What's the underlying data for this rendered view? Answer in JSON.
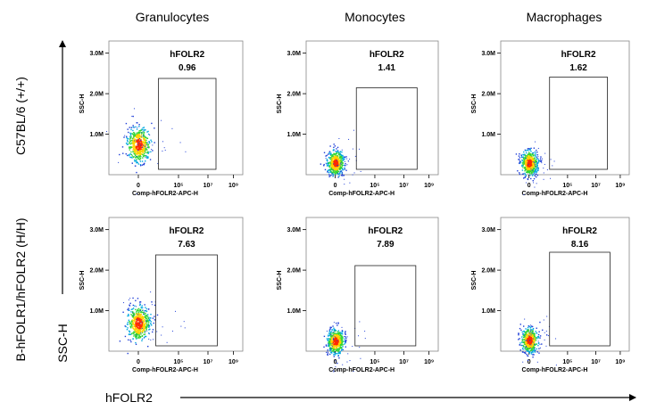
{
  "figure": {
    "columns": [
      "Granulocytes",
      "Monocytes",
      "Macrophages"
    ],
    "rows": [
      "C57BL/6 (+/+)",
      "B-hFOLR1/hFOLR2 (H/H)"
    ],
    "side_axis_label": "SSC-H",
    "bottom_axis_label": "hFOLR2"
  },
  "chart_data": [
    {
      "type": "scatter",
      "row": "C57BL/6 (+/+)",
      "column": "Granulocytes",
      "gate_name": "hFOLR2",
      "gate_percent": "0.96",
      "xlabel": "Comp-hFOLR2-APC-H",
      "ylabel": "SSC-H",
      "x_ticks": [
        "0",
        "10⁵",
        "10⁷",
        "10⁹"
      ],
      "y_ticks": [
        "1.0M",
        "2.0M",
        "3.0M"
      ],
      "population_center": {
        "x": 0,
        "y": 750000
      }
    },
    {
      "type": "scatter",
      "row": "C57BL/6 (+/+)",
      "column": "Monocytes",
      "gate_name": "hFOLR2",
      "gate_percent": "1.41",
      "xlabel": "Comp-hFOLR2-APC-H",
      "ylabel": "SSC-H",
      "x_ticks": [
        "0",
        "10⁵",
        "10⁷",
        "10⁹"
      ],
      "y_ticks": [
        "1.0M",
        "2.0M",
        "3.0M"
      ],
      "population_center": {
        "x": 0,
        "y": 300000
      }
    },
    {
      "type": "scatter",
      "row": "C57BL/6 (+/+)",
      "column": "Macrophages",
      "gate_name": "hFOLR2",
      "gate_percent": "1.62",
      "xlabel": "Comp-hFOLR2-APC-H",
      "ylabel": "SSC-H",
      "x_ticks": [
        "0",
        "10⁵",
        "10⁷",
        "10⁹"
      ],
      "y_ticks": [
        "1.0M",
        "2.0M",
        "3.0M"
      ],
      "population_center": {
        "x": 0,
        "y": 300000
      }
    },
    {
      "type": "scatter",
      "row": "B-hFOLR1/hFOLR2 (H/H)",
      "column": "Granulocytes",
      "gate_name": "hFOLR2",
      "gate_percent": "7.63",
      "xlabel": "Comp-hFOLR2-APC-H",
      "ylabel": "SSC-H",
      "x_ticks": [
        "0",
        "10⁵",
        "10⁷",
        "10⁹"
      ],
      "y_ticks": [
        "1.0M",
        "2.0M",
        "3.0M"
      ],
      "population_center": {
        "x": 0,
        "y": 700000
      }
    },
    {
      "type": "scatter",
      "row": "B-hFOLR1/hFOLR2 (H/H)",
      "column": "Monocytes",
      "gate_name": "hFOLR2",
      "gate_percent": "7.89",
      "xlabel": "Comp-hFOLR2-APC-H",
      "ylabel": "SSC-H",
      "x_ticks": [
        "0",
        "10⁵",
        "10⁷",
        "10⁹"
      ],
      "y_ticks": [
        "1.0M",
        "2.0M",
        "3.0M"
      ],
      "population_center": {
        "x": 0,
        "y": 250000
      }
    },
    {
      "type": "scatter",
      "row": "B-hFOLR1/hFOLR2 (H/H)",
      "column": "Macrophages",
      "gate_name": "hFOLR2",
      "gate_percent": "8.16",
      "xlabel": "Comp-hFOLR2-APC-H",
      "ylabel": "SSC-H",
      "x_ticks": [
        "0",
        "10⁵",
        "10⁷",
        "10⁹"
      ],
      "y_ticks": [
        "1.0M",
        "2.0M",
        "3.0M"
      ],
      "population_center": {
        "x": 0,
        "y": 280000
      }
    }
  ]
}
